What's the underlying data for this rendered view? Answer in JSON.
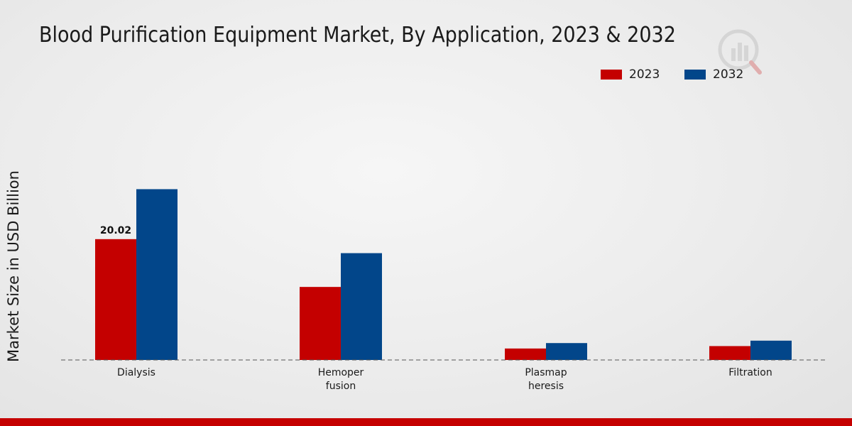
{
  "colors": {
    "series_2023": "#c40000",
    "series_2032": "#02468a",
    "accent_bar": "#c50000"
  },
  "chart_data": {
    "type": "bar",
    "title": "Blood Purification Equipment Market, By Application, 2023 & 2032",
    "xlabel": "",
    "ylabel": "Market Size in USD Billion",
    "categories": [
      [
        "Dialysis"
      ],
      [
        "Hemoper",
        "fusion"
      ],
      [
        "Plasmap",
        "heresis"
      ],
      [
        "Filtration"
      ]
    ],
    "series": [
      {
        "name": "2023",
        "values": [
          20.02,
          12.1,
          1.9,
          2.3
        ]
      },
      {
        "name": "2032",
        "values": [
          28.3,
          17.7,
          2.8,
          3.2
        ]
      }
    ],
    "data_labels": [
      {
        "series": 0,
        "category": 0,
        "text": "20.02"
      }
    ],
    "ylim": [
      0,
      42
    ],
    "legend_position": "top-right",
    "grid": false,
    "baseline_style": "dashed"
  }
}
